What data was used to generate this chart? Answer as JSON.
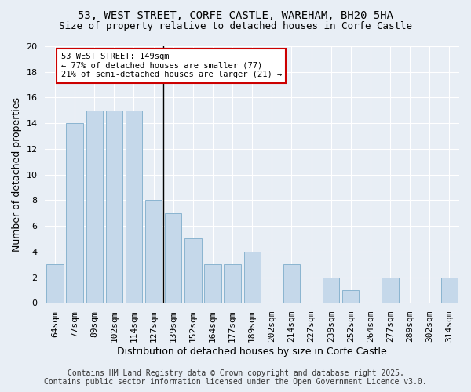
{
  "title": "53, WEST STREET, CORFE CASTLE, WAREHAM, BH20 5HA",
  "subtitle": "Size of property relative to detached houses in Corfe Castle",
  "xlabel": "Distribution of detached houses by size in Corfe Castle",
  "ylabel": "Number of detached properties",
  "categories": [
    "64sqm",
    "77sqm",
    "89sqm",
    "102sqm",
    "114sqm",
    "127sqm",
    "139sqm",
    "152sqm",
    "164sqm",
    "177sqm",
    "189sqm",
    "202sqm",
    "214sqm",
    "227sqm",
    "239sqm",
    "252sqm",
    "264sqm",
    "277sqm",
    "289sqm",
    "302sqm",
    "314sqm"
  ],
  "values": [
    3,
    14,
    15,
    15,
    15,
    8,
    7,
    5,
    3,
    3,
    4,
    0,
    3,
    0,
    2,
    1,
    0,
    2,
    0,
    0,
    2
  ],
  "bar_color": "#c5d8ea",
  "bar_edge_color": "#8ab4d0",
  "vline_x": 6,
  "annotation_text": "53 WEST STREET: 149sqm\n← 77% of detached houses are smaller (77)\n21% of semi-detached houses are larger (21) →",
  "annotation_box_color": "#ffffff",
  "annotation_border_color": "#cc0000",
  "ylim": [
    0,
    20
  ],
  "yticks": [
    0,
    2,
    4,
    6,
    8,
    10,
    12,
    14,
    16,
    18,
    20
  ],
  "footer_line1": "Contains HM Land Registry data © Crown copyright and database right 2025.",
  "footer_line2": "Contains public sector information licensed under the Open Government Licence v3.0.",
  "background_color": "#e8eef5",
  "plot_background_color": "#e8eef5",
  "title_fontsize": 10,
  "subtitle_fontsize": 9,
  "footer_fontsize": 7,
  "grid_color": "#ffffff",
  "tick_fontsize": 8,
  "ylabel_fontsize": 9,
  "xlabel_fontsize": 9
}
